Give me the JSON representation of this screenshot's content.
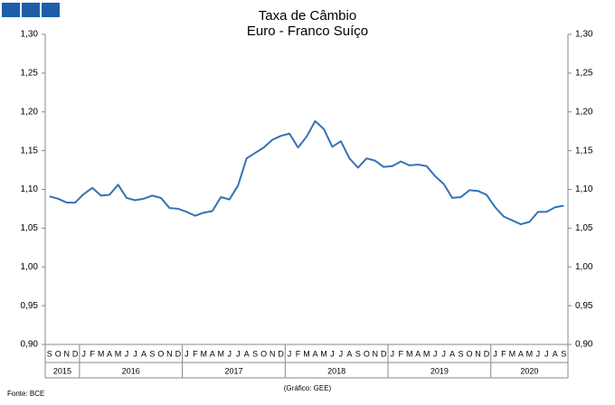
{
  "chart_data": {
    "type": "line",
    "title": "Taxa de Câmbio",
    "subtitle": "Euro - Franco Suíço",
    "source": "Fonte: BCE",
    "credit": "(Gráfico: GEE)",
    "categories": [
      "S",
      "O",
      "N",
      "D",
      "J",
      "F",
      "M",
      "A",
      "M",
      "J",
      "J",
      "A",
      "S",
      "O",
      "N",
      "D",
      "J",
      "F",
      "M",
      "A",
      "M",
      "J",
      "J",
      "A",
      "S",
      "O",
      "N",
      "D",
      "J",
      "F",
      "M",
      "A",
      "M",
      "J",
      "J",
      "A",
      "S",
      "O",
      "N",
      "D",
      "J",
      "F",
      "M",
      "A",
      "M",
      "J",
      "J",
      "A",
      "S",
      "O",
      "N",
      "D",
      "J",
      "F",
      "M",
      "A",
      "M",
      "J",
      "J",
      "A",
      "S"
    ],
    "years": [
      "2015",
      "2016",
      "2017",
      "2018",
      "2019",
      "2020"
    ],
    "series": [
      {
        "name": "Euro - Franco Suíço",
        "color": "#3472b4",
        "values": [
          1.091,
          1.088,
          1.083,
          1.083,
          1.094,
          1.102,
          1.092,
          1.093,
          1.106,
          1.089,
          1.086,
          1.088,
          1.092,
          1.089,
          1.076,
          1.075,
          1.071,
          1.066,
          1.07,
          1.072,
          1.09,
          1.087,
          1.105,
          1.14,
          1.147,
          1.154,
          1.164,
          1.169,
          1.172,
          1.154,
          1.168,
          1.188,
          1.178,
          1.155,
          1.162,
          1.14,
          1.128,
          1.14,
          1.137,
          1.129,
          1.13,
          1.136,
          1.131,
          1.132,
          1.13,
          1.117,
          1.107,
          1.089,
          1.09,
          1.099,
          1.098,
          1.093,
          1.077,
          1.065,
          1.06,
          1.055,
          1.058,
          1.071,
          1.071,
          1.077,
          1.079
        ]
      }
    ],
    "ylim": [
      0.9,
      1.3
    ],
    "yticks": [
      {
        "value": 0.9,
        "label": "0,90"
      },
      {
        "value": 0.95,
        "label": "0,95"
      },
      {
        "value": 1.0,
        "label": "1,00"
      },
      {
        "value": 1.05,
        "label": "1,05"
      },
      {
        "value": 1.1,
        "label": "1,10"
      },
      {
        "value": 1.15,
        "label": "1,15"
      },
      {
        "value": 1.2,
        "label": "1,20"
      },
      {
        "value": 1.25,
        "label": "1,25"
      },
      {
        "value": 1.3,
        "label": "1,30"
      }
    ],
    "y2lim": [
      0.9,
      1.3
    ],
    "y2ticks": [
      {
        "value": 0.9,
        "label": "0,90"
      },
      {
        "value": 0.95,
        "label": "0,95"
      },
      {
        "value": 1.0,
        "label": "1,00"
      },
      {
        "value": 1.05,
        "label": "1,05"
      },
      {
        "value": 1.1,
        "label": "1,10"
      },
      {
        "value": 1.15,
        "label": "1,15"
      },
      {
        "value": 1.2,
        "label": "1,20"
      },
      {
        "value": 1.25,
        "label": "1,25"
      },
      {
        "value": 1.3,
        "label": "1,30"
      }
    ],
    "grid": false
  }
}
